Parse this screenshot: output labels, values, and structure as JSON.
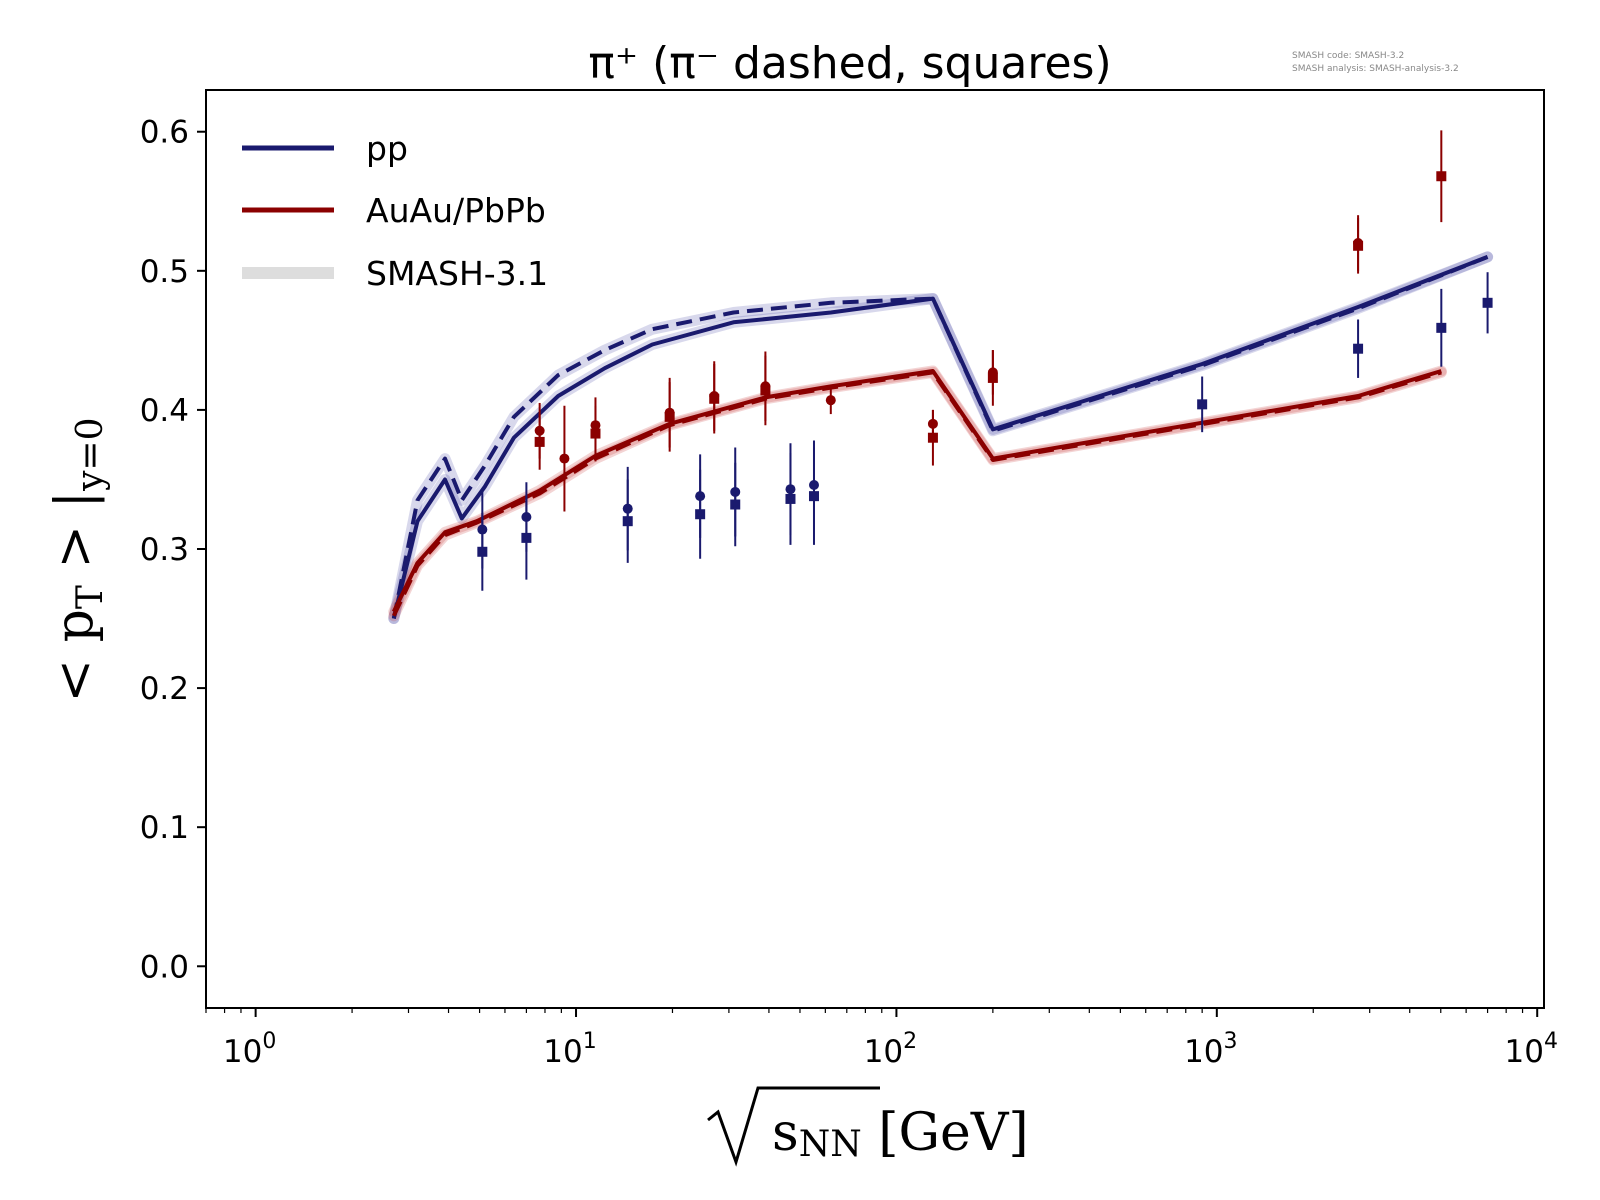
{
  "meta": {
    "code_line": "SMASH code:      SMASH-3.2",
    "analysis_line": "SMASH analysis:  SMASH-analysis-3.2"
  },
  "chart_data": {
    "type": "line",
    "title": "π⁺ (π⁻ dashed, squares)",
    "xlabel": "√sNN [GeV]",
    "ylabel": "<pT> |y=0",
    "x_scale": "log",
    "xlim": [
      0.7,
      10500
    ],
    "ylim": [
      -0.03,
      0.63
    ],
    "x_ticks": [
      {
        "value": 1,
        "base": "10",
        "exp": "0"
      },
      {
        "value": 10,
        "base": "10",
        "exp": "1"
      },
      {
        "value": 100,
        "base": "10",
        "exp": "2"
      },
      {
        "value": 1000,
        "base": "10",
        "exp": "3"
      },
      {
        "value": 10000,
        "base": "10",
        "exp": "4"
      }
    ],
    "y_ticks": [
      "0.0",
      "0.1",
      "0.2",
      "0.3",
      "0.4",
      "0.5",
      "0.6"
    ],
    "grid": false,
    "legend_position": "top-left",
    "legend": [
      {
        "label": "pp",
        "color": "#1a1a6e",
        "style": "solid"
      },
      {
        "label": "AuAu/PbPb",
        "color": "#8b0000",
        "style": "solid"
      },
      {
        "label": "SMASH-3.1",
        "color": "#dddddd",
        "style": "band"
      }
    ],
    "series": [
      {
        "name": "pp",
        "particle": "pi+",
        "style": "solid",
        "color": "#1a1a6e",
        "points": [
          [
            2.7,
            0.25
          ],
          [
            3.2,
            0.32
          ],
          [
            3.9,
            0.35
          ],
          [
            4.4,
            0.322
          ],
          [
            5.2,
            0.345
          ],
          [
            6.4,
            0.38
          ],
          [
            8.8,
            0.41
          ],
          [
            12.3,
            0.43
          ],
          [
            17.3,
            0.447
          ],
          [
            31,
            0.463
          ],
          [
            62.4,
            0.47
          ],
          [
            130,
            0.48
          ],
          [
            200,
            0.386
          ],
          [
            900,
            0.433
          ],
          [
            2760,
            0.474
          ],
          [
            7000,
            0.51
          ]
        ]
      },
      {
        "name": "pp",
        "particle": "pi-",
        "style": "dashed",
        "color": "#1a1a6e",
        "points": [
          [
            2.7,
            0.25
          ],
          [
            3.2,
            0.335
          ],
          [
            3.9,
            0.365
          ],
          [
            4.4,
            0.335
          ],
          [
            5.2,
            0.36
          ],
          [
            6.4,
            0.395
          ],
          [
            8.8,
            0.425
          ],
          [
            12.3,
            0.443
          ],
          [
            17.3,
            0.458
          ],
          [
            31,
            0.47
          ],
          [
            62.4,
            0.477
          ],
          [
            130,
            0.48
          ],
          [
            200,
            0.385
          ],
          [
            900,
            0.432
          ],
          [
            2760,
            0.473
          ],
          [
            7000,
            0.51
          ]
        ]
      },
      {
        "name": "AuAu/PbPb",
        "particle": "pi+",
        "style": "solid",
        "color": "#8b0000",
        "points": [
          [
            2.7,
            0.255
          ],
          [
            3.2,
            0.29
          ],
          [
            3.9,
            0.312
          ],
          [
            4.9,
            0.32
          ],
          [
            7.7,
            0.342
          ],
          [
            11.5,
            0.367
          ],
          [
            19.6,
            0.39
          ],
          [
            39,
            0.409
          ],
          [
            62.4,
            0.417
          ],
          [
            130,
            0.428
          ],
          [
            200,
            0.365
          ],
          [
            2760,
            0.41
          ],
          [
            5020,
            0.428
          ]
        ]
      },
      {
        "name": "AuAu/PbPb",
        "particle": "pi-",
        "style": "dashed",
        "color": "#8b0000",
        "points": [
          [
            2.7,
            0.252
          ],
          [
            3.2,
            0.288
          ],
          [
            3.9,
            0.31
          ],
          [
            4.9,
            0.319
          ],
          [
            7.7,
            0.34
          ],
          [
            11.5,
            0.365
          ],
          [
            19.6,
            0.389
          ],
          [
            39,
            0.408
          ],
          [
            62.4,
            0.416
          ],
          [
            130,
            0.427
          ],
          [
            200,
            0.364
          ],
          [
            2760,
            0.409
          ],
          [
            5020,
            0.427
          ]
        ]
      }
    ],
    "data_points": [
      {
        "system": "pp",
        "particle": "pi+",
        "marker": "circle",
        "color": "#1a1a6e",
        "points": [
          [
            5.1,
            0.314,
            0.028
          ],
          [
            7.0,
            0.323,
            0.025
          ],
          [
            14.5,
            0.329,
            0.03
          ],
          [
            24.4,
            0.338,
            0.03
          ],
          [
            31.4,
            0.341,
            0.032
          ],
          [
            46.7,
            0.343,
            0.033
          ],
          [
            55.3,
            0.346,
            0.032
          ]
        ]
      },
      {
        "system": "pp",
        "particle": "pi-",
        "marker": "square",
        "color": "#1a1a6e",
        "points": [
          [
            5.1,
            0.298,
            0.028
          ],
          [
            7.0,
            0.308,
            0.03
          ],
          [
            14.5,
            0.32,
            0.03
          ],
          [
            24.4,
            0.325,
            0.032
          ],
          [
            31.4,
            0.332,
            0.03
          ],
          [
            46.7,
            0.336,
            0.033
          ],
          [
            55.3,
            0.338,
            0.035
          ],
          [
            900,
            0.404,
            0.02
          ],
          [
            2760,
            0.444,
            0.021
          ],
          [
            5020,
            0.459,
            0.028
          ],
          [
            7000,
            0.477,
            0.022
          ]
        ]
      },
      {
        "system": "AuAu/PbPb",
        "particle": "pi+",
        "marker": "circle",
        "color": "#8b0000",
        "points": [
          [
            7.7,
            0.385,
            0.02
          ],
          [
            9.2,
            0.365,
            0.038
          ],
          [
            11.5,
            0.389,
            0.02
          ],
          [
            19.6,
            0.398,
            0.025
          ],
          [
            27,
            0.41,
            0.025
          ],
          [
            39,
            0.417,
            0.025
          ],
          [
            62.4,
            0.407,
            0.01
          ],
          [
            130,
            0.39,
            0.01
          ],
          [
            200,
            0.427,
            0.016
          ],
          [
            2760,
            0.52,
            0.02
          ]
        ]
      },
      {
        "system": "AuAu/PbPb",
        "particle": "pi-",
        "marker": "square",
        "color": "#8b0000",
        "points": [
          [
            7.7,
            0.377,
            0.02
          ],
          [
            11.5,
            0.383,
            0.02
          ],
          [
            19.6,
            0.395,
            0.025
          ],
          [
            27,
            0.408,
            0.025
          ],
          [
            39,
            0.414,
            0.025
          ],
          [
            130,
            0.38,
            0.02
          ],
          [
            200,
            0.423,
            0.02
          ],
          [
            2760,
            0.518,
            0.02
          ],
          [
            5020,
            0.568,
            0.033
          ]
        ]
      }
    ]
  }
}
